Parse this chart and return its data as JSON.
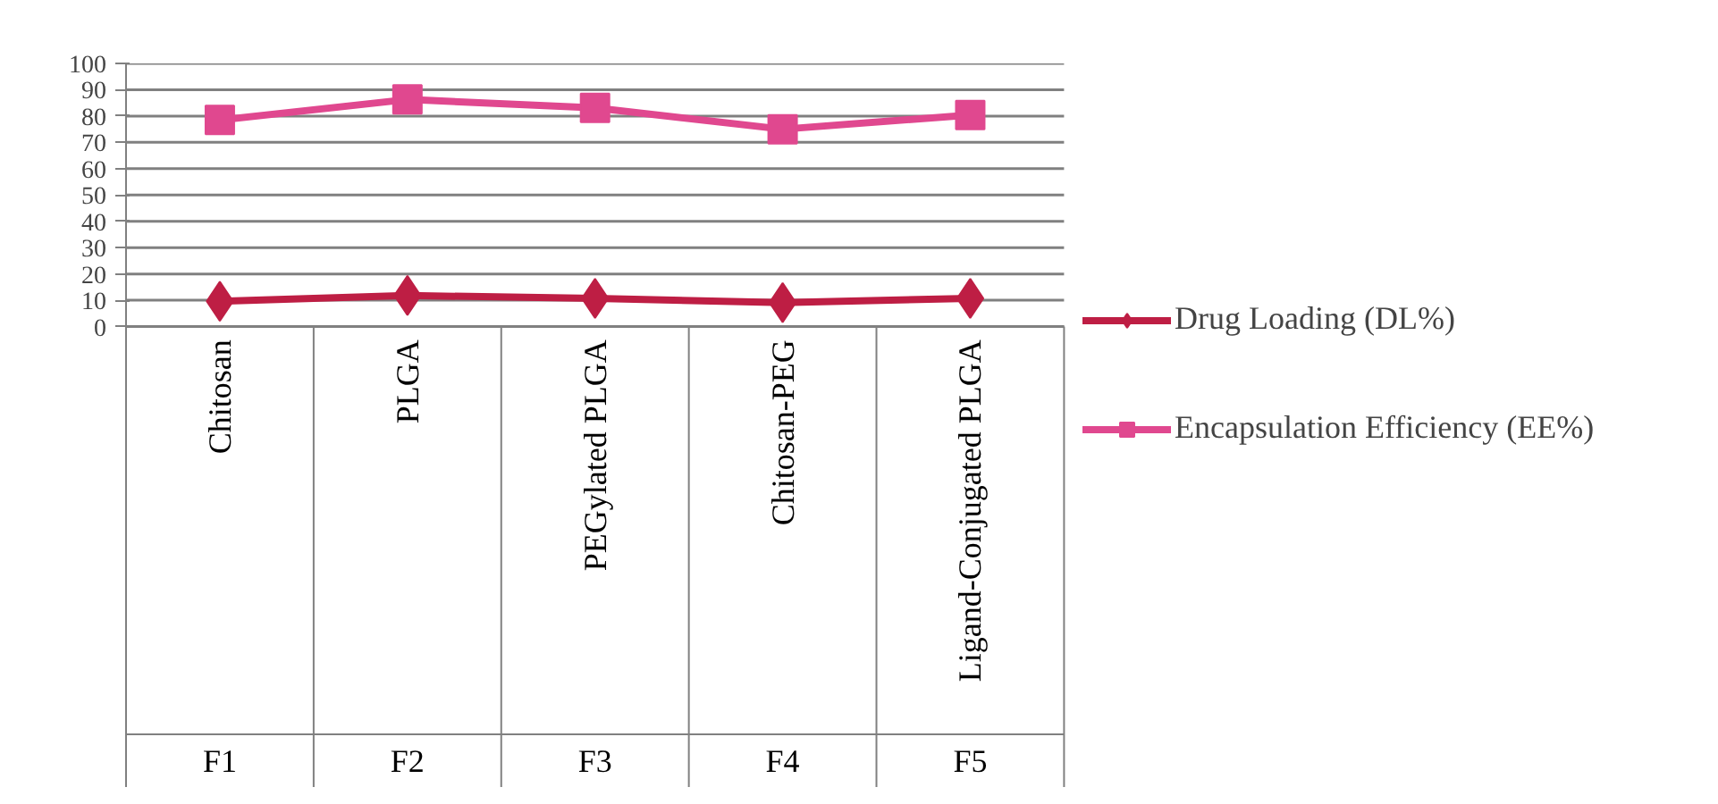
{
  "chart_data": {
    "type": "line",
    "categories": [
      "Chitosan",
      "PLGA",
      "PEGylated PLGA",
      "Chitosan-PEG",
      "Ligand-Conjugated PLGA"
    ],
    "series": [
      {
        "name": "Drug Loading (DL%)",
        "color": "#be1e44",
        "marker": "diamond",
        "values": [
          9.6,
          11.8,
          10.7,
          9.1,
          10.7
        ]
      },
      {
        "name": "Encapsulation Efficiency (EE%)",
        "color": "#e0488f",
        "marker": "square",
        "values": [
          78.5,
          86.3,
          83.1,
          75,
          80.4
        ]
      }
    ],
    "annotations": [
      "F1",
      "F2",
      "F3",
      "F4",
      "F5"
    ],
    "ylim": [
      0,
      100
    ],
    "yticks": [
      0,
      10,
      20,
      30,
      40,
      50,
      60,
      70,
      80,
      90,
      100
    ],
    "grid": "y",
    "legend": "right",
    "line_style": "solid"
  }
}
